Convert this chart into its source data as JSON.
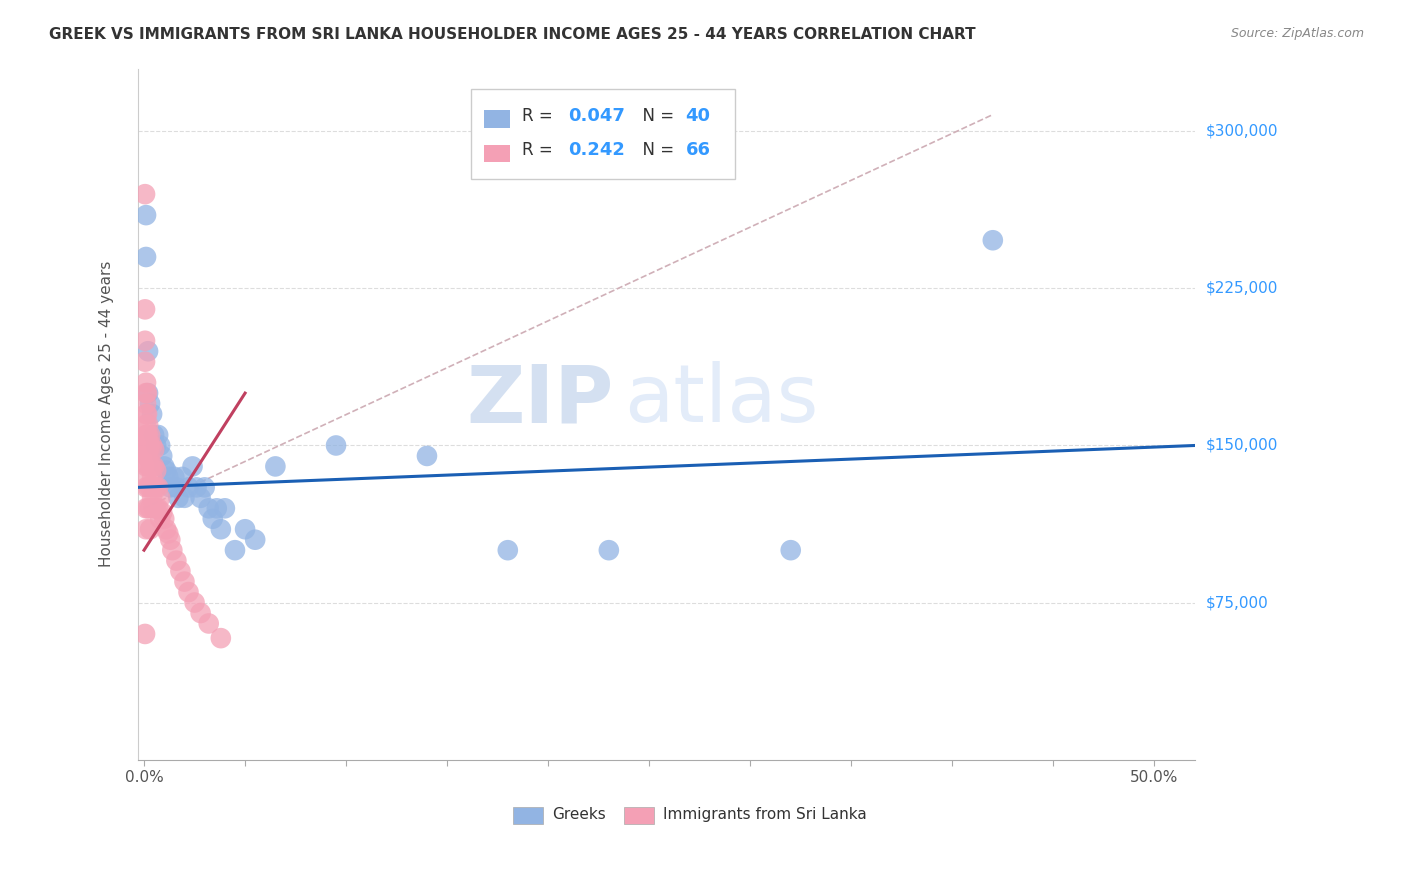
{
  "title": "GREEK VS IMMIGRANTS FROM SRI LANKA HOUSEHOLDER INCOME AGES 25 - 44 YEARS CORRELATION CHART",
  "source": "Source: ZipAtlas.com",
  "ylabel": "Householder Income Ages 25 - 44 years",
  "ytick_labels": [
    "$75,000",
    "$150,000",
    "$225,000",
    "$300,000"
  ],
  "ytick_values": [
    75000,
    150000,
    225000,
    300000
  ],
  "ymin": 0,
  "ymax": 330000,
  "xmin": -0.003,
  "xmax": 0.52,
  "watermark_zip": "ZIP",
  "watermark_atlas": "atlas",
  "legend_blue_r": "0.047",
  "legend_blue_n": "40",
  "legend_pink_r": "0.242",
  "legend_pink_n": "66",
  "blue_color": "#92b4e3",
  "pink_color": "#f4a0b5",
  "trend_blue_color": "#1a5fb4",
  "trend_pink_color": "#c04060",
  "diagonal_color": "#d0b0b8",
  "grid_color": "#dddddd",
  "blue_scatter_x": [
    0.001,
    0.001,
    0.002,
    0.002,
    0.003,
    0.004,
    0.005,
    0.006,
    0.007,
    0.008,
    0.009,
    0.01,
    0.011,
    0.012,
    0.013,
    0.015,
    0.016,
    0.017,
    0.019,
    0.02,
    0.022,
    0.024,
    0.026,
    0.028,
    0.03,
    0.032,
    0.034,
    0.036,
    0.038,
    0.04,
    0.045,
    0.05,
    0.055,
    0.065,
    0.095,
    0.14,
    0.18,
    0.23,
    0.32,
    0.42
  ],
  "blue_scatter_y": [
    260000,
    240000,
    195000,
    175000,
    170000,
    165000,
    155000,
    150000,
    155000,
    150000,
    145000,
    140000,
    138000,
    135000,
    130000,
    135000,
    130000,
    125000,
    135000,
    125000,
    130000,
    140000,
    130000,
    125000,
    130000,
    120000,
    115000,
    120000,
    110000,
    120000,
    100000,
    110000,
    105000,
    140000,
    150000,
    145000,
    100000,
    100000,
    100000,
    248000
  ],
  "pink_scatter_x": [
    0.0005,
    0.0005,
    0.0005,
    0.0005,
    0.0005,
    0.001,
    0.001,
    0.001,
    0.001,
    0.001,
    0.001,
    0.001,
    0.001,
    0.001,
    0.001,
    0.001,
    0.001,
    0.001,
    0.0015,
    0.0015,
    0.0015,
    0.0015,
    0.002,
    0.002,
    0.002,
    0.002,
    0.002,
    0.002,
    0.002,
    0.0025,
    0.003,
    0.003,
    0.003,
    0.003,
    0.003,
    0.003,
    0.003,
    0.004,
    0.004,
    0.004,
    0.004,
    0.005,
    0.005,
    0.005,
    0.005,
    0.006,
    0.006,
    0.006,
    0.007,
    0.007,
    0.008,
    0.008,
    0.009,
    0.01,
    0.011,
    0.012,
    0.013,
    0.014,
    0.016,
    0.018,
    0.02,
    0.022,
    0.025,
    0.028,
    0.032,
    0.038
  ],
  "pink_scatter_y": [
    270000,
    215000,
    200000,
    190000,
    60000,
    180000,
    175000,
    170000,
    165000,
    160000,
    155000,
    150000,
    145000,
    140000,
    135000,
    130000,
    120000,
    110000,
    175000,
    165000,
    155000,
    145000,
    160000,
    155000,
    150000,
    145000,
    140000,
    130000,
    120000,
    150000,
    155000,
    150000,
    145000,
    140000,
    130000,
    120000,
    110000,
    150000,
    140000,
    135000,
    125000,
    148000,
    140000,
    130000,
    120000,
    138000,
    130000,
    120000,
    130000,
    120000,
    125000,
    115000,
    118000,
    115000,
    110000,
    108000,
    105000,
    100000,
    95000,
    90000,
    85000,
    80000,
    75000,
    70000,
    65000,
    58000
  ]
}
